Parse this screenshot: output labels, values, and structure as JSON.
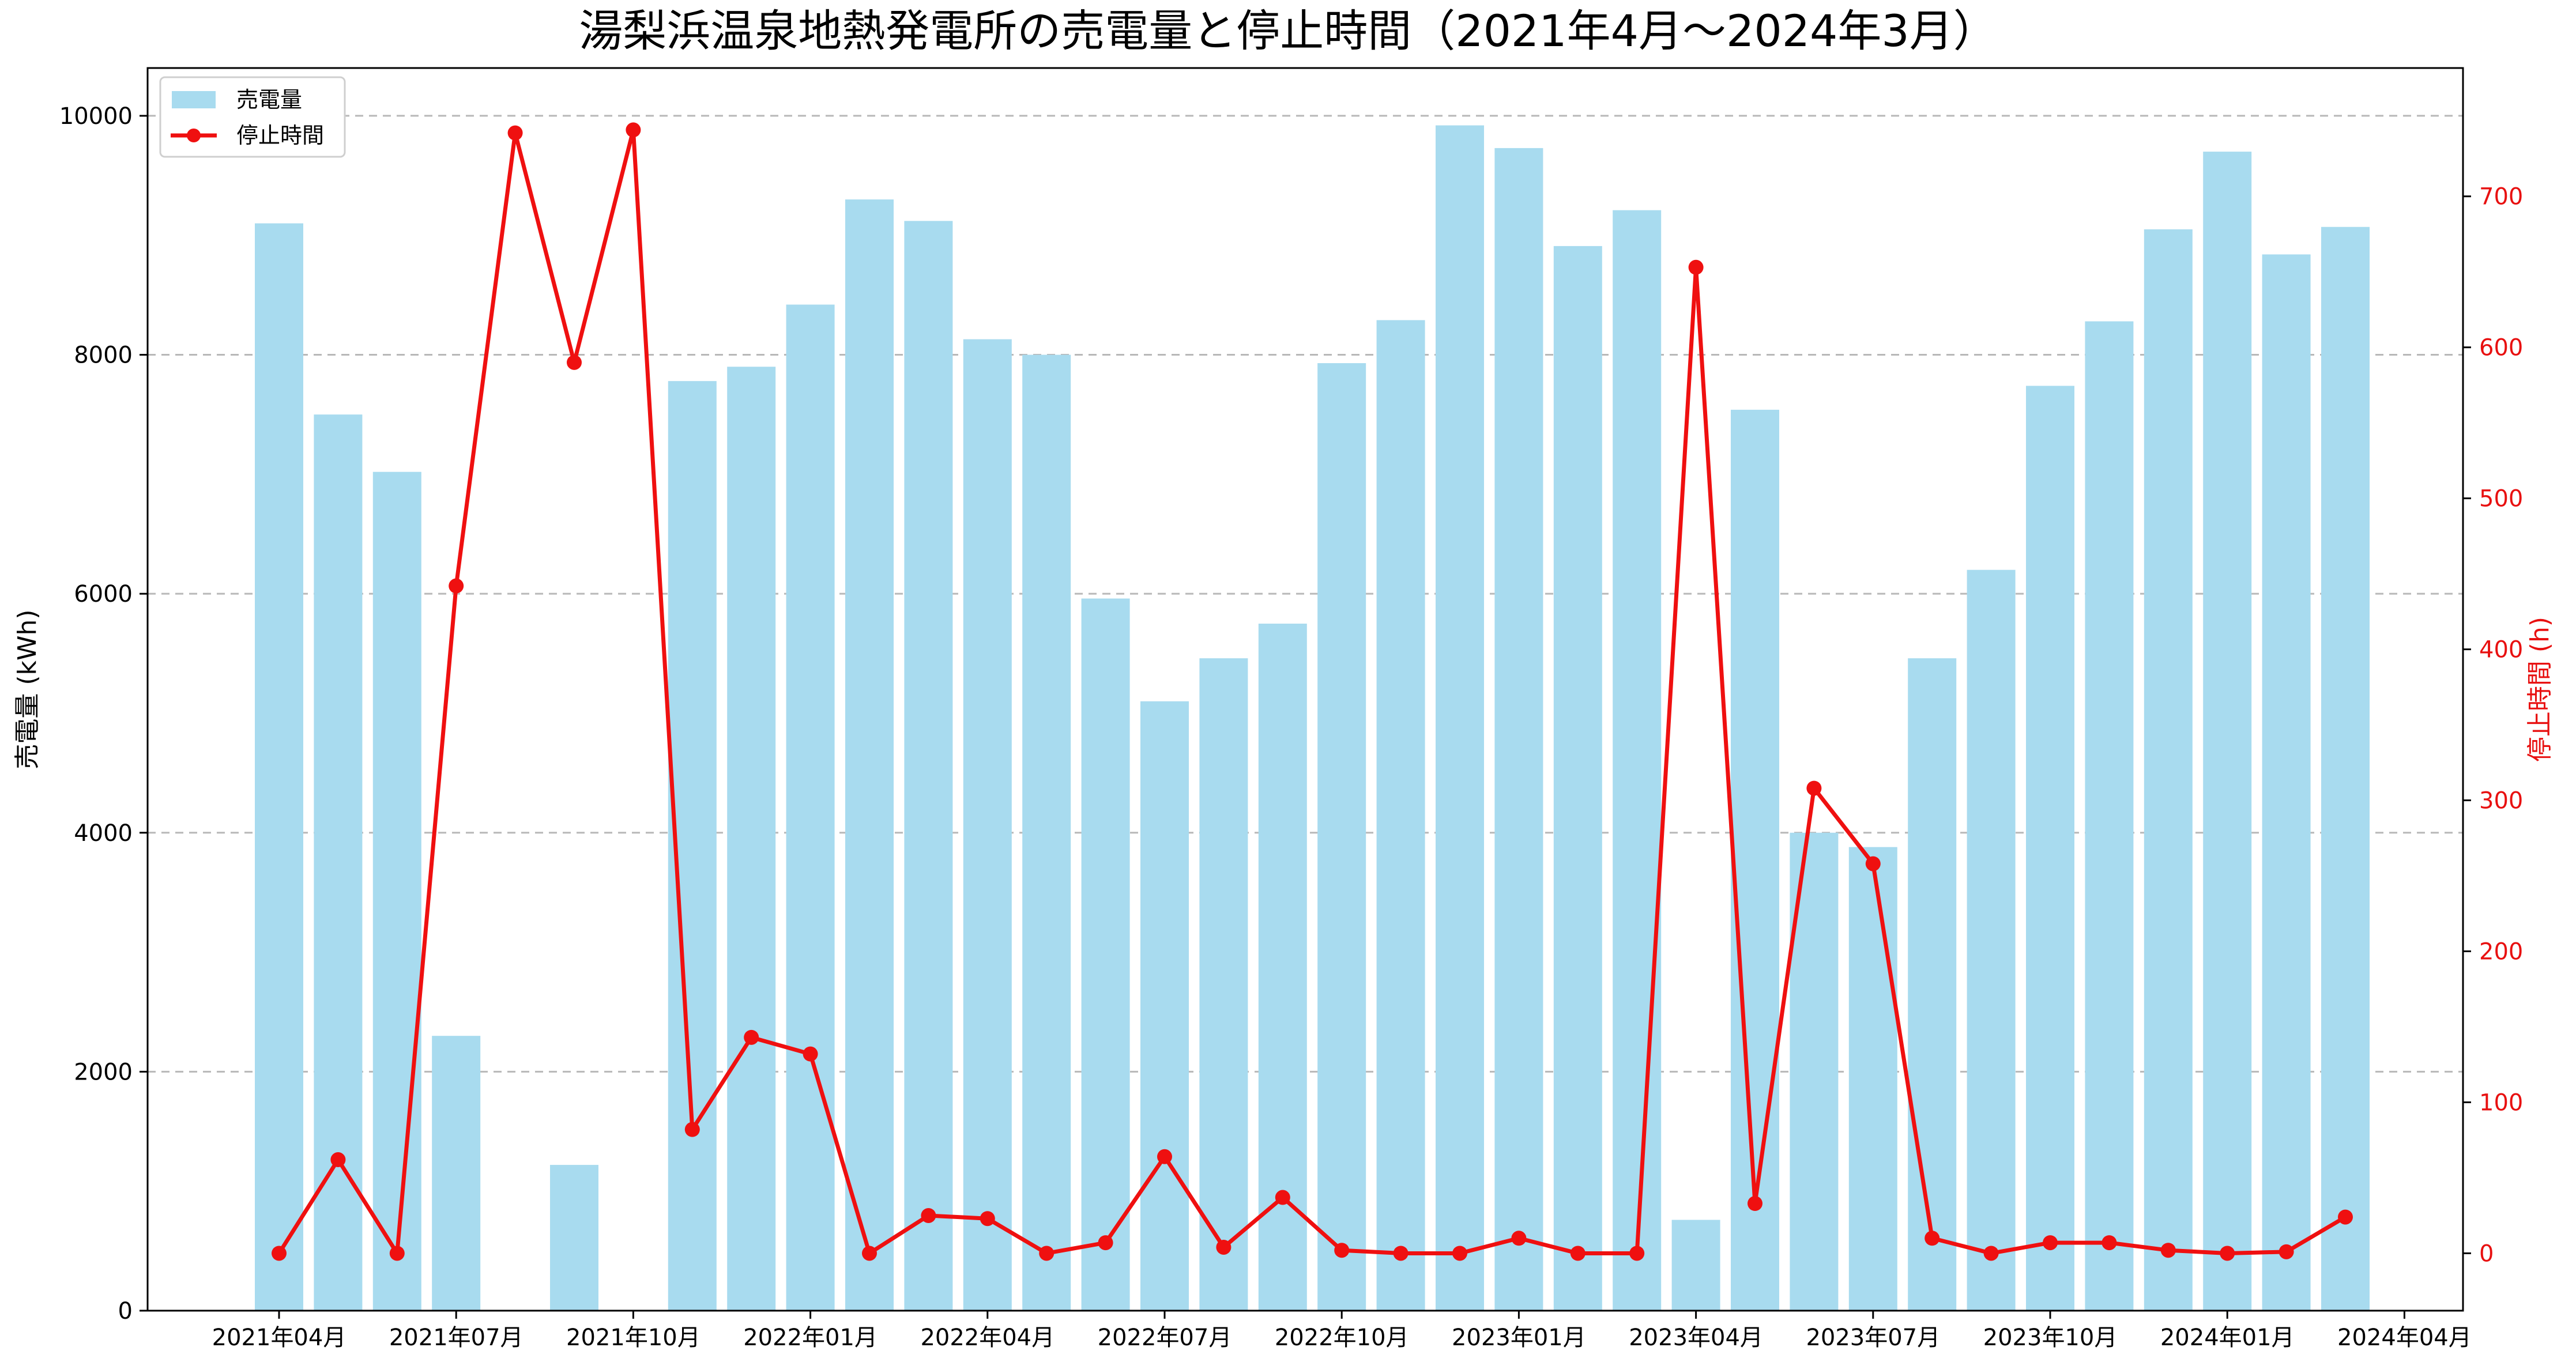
{
  "chart_data": {
    "type": "bar+line",
    "title": "湯梨浜温泉地熱発電所の売電量と停止時間（2021年4月～2024年3月）",
    "ylabel_left": "売電量 (kWh)",
    "ylabel_right": "停止時間 (h)",
    "ylim_left": [
      0,
      10400
    ],
    "ylim_right": [
      -38,
      785
    ],
    "yticks_left": [
      0,
      2000,
      4000,
      6000,
      8000,
      10000
    ],
    "yticks_right": [
      0,
      100,
      200,
      300,
      400,
      500,
      600,
      700
    ],
    "grid": "horizontal dashed",
    "legend_placement": "top-left",
    "colors": {
      "bar": "#a8dbef",
      "line": "#ef1010",
      "right_axis": "#e81010"
    },
    "categories": [
      "2021-04",
      "2021-05",
      "2021-06",
      "2021-07",
      "2021-08",
      "2021-09",
      "2021-10",
      "2021-11",
      "2021-12",
      "2022-01",
      "2022-02",
      "2022-03",
      "2022-04",
      "2022-05",
      "2022-06",
      "2022-07",
      "2022-08",
      "2022-09",
      "2022-10",
      "2022-11",
      "2022-12",
      "2023-01",
      "2023-02",
      "2023-03",
      "2023-04",
      "2023-05",
      "2023-06",
      "2023-07",
      "2023-08",
      "2023-09",
      "2023-10",
      "2023-11",
      "2023-12",
      "2024-01",
      "2024-02",
      "2024-03"
    ],
    "x_tick_labels": [
      "2021年04月",
      "2021年07月",
      "2021年10月",
      "2022年01月",
      "2022年04月",
      "2022年07月",
      "2022年10月",
      "2023年01月",
      "2023年04月",
      "2023年07月",
      "2023年10月",
      "2024年01月",
      "2024年04月"
    ],
    "x_tick_dates": [
      "2021-04",
      "2021-07",
      "2021-10",
      "2022-01",
      "2022-04",
      "2022-07",
      "2022-10",
      "2023-01",
      "2023-04",
      "2023-07",
      "2023-10",
      "2024-01",
      "2024-04"
    ],
    "series": [
      {
        "name": "売電量",
        "axis": "left",
        "kind": "bar",
        "values": [
          9100,
          7500,
          7020,
          2300,
          0,
          1220,
          0,
          7780,
          7900,
          8420,
          9300,
          9120,
          8130,
          8000,
          5960,
          5100,
          5460,
          5750,
          7930,
          8290,
          9920,
          9730,
          8910,
          9210,
          760,
          7540,
          4000,
          3880,
          5460,
          6200,
          7740,
          8280,
          9050,
          9700,
          8840,
          9070
        ]
      },
      {
        "name": "停止時間",
        "axis": "right",
        "kind": "line",
        "values": [
          0,
          62,
          0,
          442,
          742,
          590,
          744,
          82,
          143,
          132,
          0,
          25,
          23,
          0,
          7,
          64,
          4,
          37,
          2,
          0,
          0,
          10,
          0,
          0,
          653,
          33,
          308,
          258,
          10,
          0,
          7,
          7,
          2,
          0,
          1,
          24
        ]
      }
    ]
  }
}
